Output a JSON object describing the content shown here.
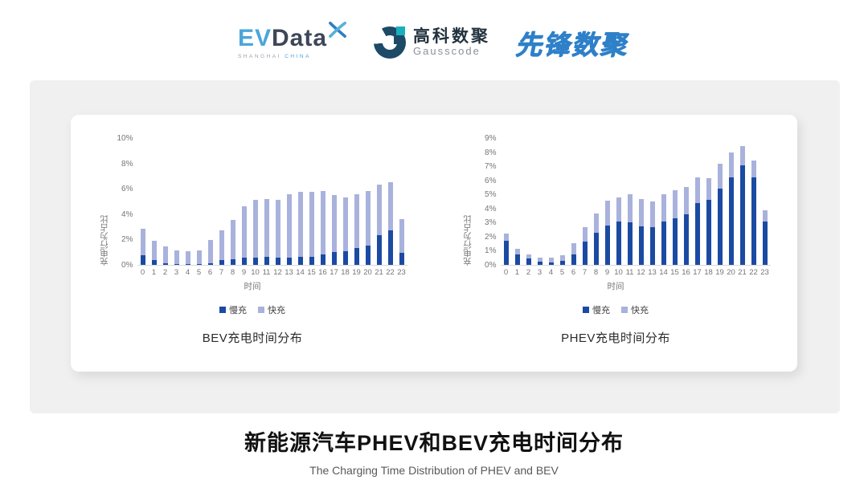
{
  "header": {
    "evdata": {
      "ev": "EV",
      "data": "Data",
      "sub_left": "SHANGHAI",
      "sub_right": "CHINA"
    },
    "gausscode": {
      "cn": "高科数聚",
      "en": "Gausscode"
    },
    "pioneer": {
      "text": "先锋数聚"
    }
  },
  "colors": {
    "slow": "#1b4aa2",
    "fast": "#a9b2dc",
    "panel_bg": "#f0f0f0",
    "axis_text": "#757575",
    "pioneer_blue": "#2e80c8",
    "gauss_navy": "#1c4a67",
    "gauss_teal": "#19b0bc",
    "evdata_blue": "#4ba6d9"
  },
  "chart_data": [
    {
      "type": "bar",
      "stacked": true,
      "title": "BEV充电时间分布",
      "xlabel": "时间",
      "ylabel": "充电行为占比",
      "categories": [
        0,
        1,
        2,
        3,
        4,
        5,
        6,
        7,
        8,
        9,
        10,
        11,
        12,
        13,
        14,
        15,
        16,
        17,
        18,
        19,
        20,
        21,
        22,
        23
      ],
      "ymax": 10,
      "y_ticks": [
        {
          "v": 0,
          "label": "0%"
        },
        {
          "v": 2,
          "label": "2%"
        },
        {
          "v": 4,
          "label": "4%"
        },
        {
          "v": 6,
          "label": "6%"
        },
        {
          "v": 8,
          "label": "8%"
        },
        {
          "v": 10,
          "label": "10%"
        }
      ],
      "legend_position": "bottom",
      "grid": false,
      "series": [
        {
          "name": "慢充",
          "values": [
            0.75,
            0.35,
            0.15,
            0.08,
            0.06,
            0.08,
            0.15,
            0.35,
            0.45,
            0.6,
            0.6,
            0.62,
            0.58,
            0.6,
            0.65,
            0.65,
            0.85,
            1.0,
            1.1,
            1.3,
            1.55,
            2.35,
            2.75,
            0.95
          ]
        },
        {
          "name": "快充",
          "values": [
            2.1,
            1.55,
            1.3,
            1.05,
            1.0,
            1.05,
            1.8,
            2.4,
            3.1,
            4.0,
            4.5,
            4.55,
            4.55,
            5.0,
            5.1,
            5.1,
            4.95,
            4.5,
            4.2,
            4.25,
            4.3,
            3.95,
            3.75,
            2.65
          ]
        }
      ]
    },
    {
      "type": "bar",
      "stacked": true,
      "title": "PHEV充电时间分布",
      "xlabel": "时间",
      "ylabel": "充电行为占比",
      "categories": [
        0,
        1,
        2,
        3,
        4,
        5,
        6,
        7,
        8,
        9,
        10,
        11,
        12,
        13,
        14,
        15,
        16,
        17,
        18,
        19,
        20,
        21,
        22,
        23
      ],
      "ymax": 9,
      "y_ticks": [
        {
          "v": 0,
          "label": "0%"
        },
        {
          "v": 1,
          "label": "1%"
        },
        {
          "v": 2,
          "label": "2%"
        },
        {
          "v": 3,
          "label": "3%"
        },
        {
          "v": 4,
          "label": "4%"
        },
        {
          "v": 5,
          "label": "5%"
        },
        {
          "v": 6,
          "label": "6%"
        },
        {
          "v": 7,
          "label": "7%"
        },
        {
          "v": 8,
          "label": "8%"
        },
        {
          "v": 9,
          "label": "9%"
        }
      ],
      "legend_position": "bottom",
      "grid": false,
      "series": [
        {
          "name": "慢充",
          "values": [
            1.7,
            0.75,
            0.48,
            0.25,
            0.2,
            0.3,
            0.75,
            1.65,
            2.3,
            2.8,
            3.05,
            3.0,
            2.75,
            2.65,
            3.1,
            3.3,
            3.6,
            4.4,
            4.6,
            5.4,
            6.2,
            7.05,
            6.2,
            3.05
          ]
        },
        {
          "name": "快充",
          "values": [
            0.5,
            0.4,
            0.27,
            0.25,
            0.3,
            0.4,
            0.8,
            1.05,
            1.35,
            1.75,
            1.75,
            2.0,
            1.9,
            1.85,
            1.9,
            2.0,
            1.95,
            1.8,
            1.55,
            1.75,
            1.75,
            1.4,
            1.2,
            0.8
          ]
        }
      ]
    }
  ],
  "footer": {
    "title": "新能源汽车PHEV和BEV充电时间分布",
    "subtitle": "The Charging Time Distribution of PHEV and BEV"
  }
}
